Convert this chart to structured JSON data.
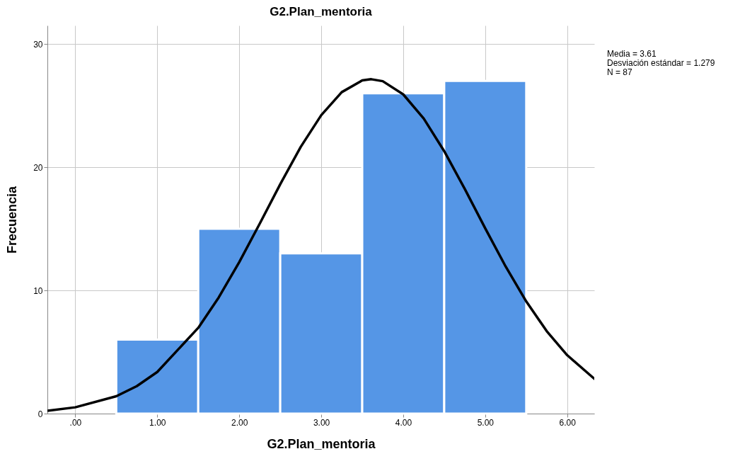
{
  "chart_data": {
    "type": "histogram",
    "title": "G2.Plan_mentoria",
    "xlabel": "G2.Plan_mentoria",
    "ylabel": "Frecuencia",
    "bins": [
      0.5,
      1.5,
      2.5,
      3.5,
      4.5,
      5.5
    ],
    "series": [
      {
        "color": "#5596e6",
        "values": [
          6,
          15,
          13,
          26,
          27
        ]
      },
      {
        "type": "line",
        "color": "#000000",
        "x": [
          -0.34,
          0,
          0.5,
          0.75,
          1,
          1.5,
          1.75,
          2,
          2.25,
          2.5,
          2.75,
          3,
          3.25,
          3.5,
          3.61,
          3.75,
          4,
          4.25,
          4.5,
          4.75,
          5,
          5.25,
          5.5,
          5.75,
          6,
          6.33
        ],
        "values": [
          0.23,
          0.51,
          1.41,
          2.23,
          3.38,
          6.96,
          9.43,
          12.29,
          15.42,
          18.62,
          21.65,
          24.22,
          26.09,
          27.04,
          27.14,
          26.98,
          25.91,
          23.95,
          21.3,
          18.24,
          15.04,
          11.93,
          9.11,
          6.69,
          4.74,
          2.83
        ]
      }
    ],
    "xlim": [
      -0.34,
      6.33
    ],
    "xticks": [
      {
        "value": 0,
        "label": ".00"
      },
      {
        "value": 1,
        "label": "1.00"
      },
      {
        "value": 2,
        "label": "2.00"
      },
      {
        "value": 3,
        "label": "3.00"
      },
      {
        "value": 4,
        "label": "4.00"
      },
      {
        "value": 5,
        "label": "5.00"
      },
      {
        "value": 6,
        "label": "6.00"
      }
    ],
    "ylim": [
      0,
      31.5
    ],
    "yticks": [
      0,
      10,
      20,
      30
    ],
    "grid": true,
    "line_style": "solid",
    "annotations": [
      "Media = 3.61",
      "Desviación estándar = 1.279",
      "N = 87"
    ]
  }
}
